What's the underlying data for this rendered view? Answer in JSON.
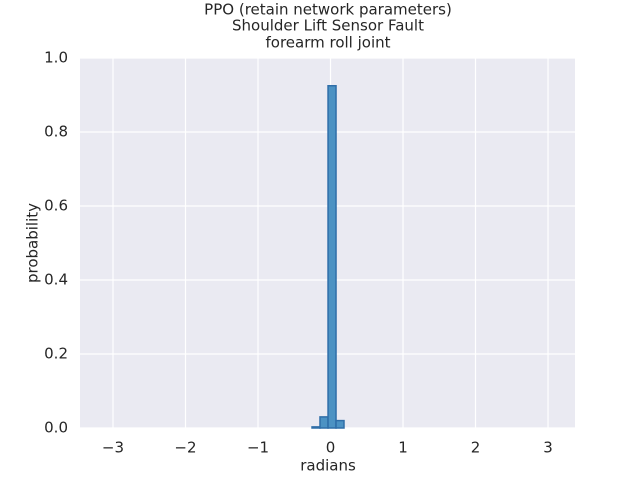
{
  "chart_data": {
    "type": "histogram",
    "title": [
      "PPO (retain network parameters)",
      "Shoulder Lift Sensor Fault",
      "forearm roll joint"
    ],
    "x_label": "radians",
    "y_label": "probability",
    "bins": [
      -0.255,
      -0.145,
      -0.034,
      0.076,
      0.186
    ],
    "values": [
      0.003,
      0.03,
      0.925,
      0.02
    ],
    "color": "#4c92c3",
    "edge_color": "#2f6ea8",
    "xlim": [
      -3.455,
      3.372
    ],
    "ylim": [
      0,
      1
    ],
    "xticks": [
      {
        "value": -3,
        "label": "−3"
      },
      {
        "value": -2,
        "label": "−2"
      },
      {
        "value": -1,
        "label": "−1"
      },
      0,
      1,
      2,
      3
    ],
    "yticks": [
      {
        "value": 0,
        "label": "0.0"
      },
      {
        "value": 0.2,
        "label": "0.2"
      },
      {
        "value": 0.4,
        "label": "0.4"
      },
      {
        "value": 0.6,
        "label": "0.6"
      },
      {
        "value": 0.8,
        "label": "0.8"
      },
      {
        "value": 1,
        "label": "1.0"
      }
    ],
    "grid": true,
    "background": "#eaeaf2"
  }
}
